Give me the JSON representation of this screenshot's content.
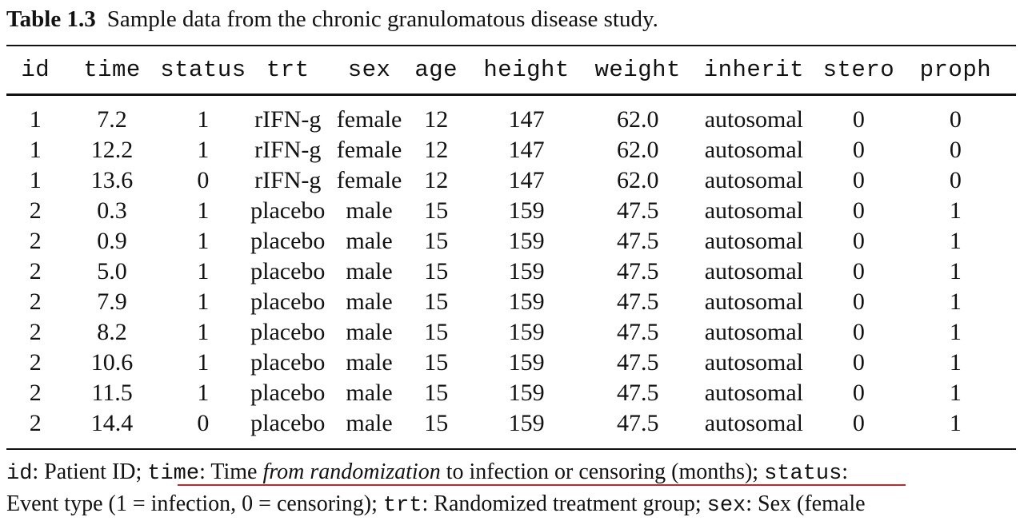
{
  "caption": {
    "label": "Table 1.3",
    "text": "Sample data from the chronic granulomatous disease study."
  },
  "table": {
    "headers": [
      "id",
      "time",
      "status",
      "trt",
      "sex",
      "age",
      "height",
      "weight",
      "inherit",
      "stero",
      "proph"
    ],
    "rows": [
      [
        "1",
        "7.2",
        "1",
        "rIFN-g",
        "female",
        "12",
        "147",
        "62.0",
        "autosomal",
        "0",
        "0"
      ],
      [
        "1",
        "12.2",
        "1",
        "rIFN-g",
        "female",
        "12",
        "147",
        "62.0",
        "autosomal",
        "0",
        "0"
      ],
      [
        "1",
        "13.6",
        "0",
        "rIFN-g",
        "female",
        "12",
        "147",
        "62.0",
        "autosomal",
        "0",
        "0"
      ],
      [
        "2",
        "0.3",
        "1",
        "placebo",
        "male",
        "15",
        "159",
        "47.5",
        "autosomal",
        "0",
        "1"
      ],
      [
        "2",
        "0.9",
        "1",
        "placebo",
        "male",
        "15",
        "159",
        "47.5",
        "autosomal",
        "0",
        "1"
      ],
      [
        "2",
        "5.0",
        "1",
        "placebo",
        "male",
        "15",
        "159",
        "47.5",
        "autosomal",
        "0",
        "1"
      ],
      [
        "2",
        "7.9",
        "1",
        "placebo",
        "male",
        "15",
        "159",
        "47.5",
        "autosomal",
        "0",
        "1"
      ],
      [
        "2",
        "8.2",
        "1",
        "placebo",
        "male",
        "15",
        "159",
        "47.5",
        "autosomal",
        "0",
        "1"
      ],
      [
        "2",
        "10.6",
        "1",
        "placebo",
        "male",
        "15",
        "159",
        "47.5",
        "autosomal",
        "0",
        "1"
      ],
      [
        "2",
        "11.5",
        "1",
        "placebo",
        "male",
        "15",
        "159",
        "47.5",
        "autosomal",
        "0",
        "1"
      ],
      [
        "2",
        "14.4",
        "0",
        "placebo",
        "male",
        "15",
        "159",
        "47.5",
        "autosomal",
        "0",
        "1"
      ]
    ]
  },
  "description": {
    "line1": {
      "id_term": "id",
      "id_text": ": Patient ID; ",
      "time_term": "time",
      "time_text_a": ": Time ",
      "time_text_em": "from randomization",
      "time_text_b": " to infection or censoring (months); ",
      "status_term": "status",
      "status_text": ":"
    },
    "line2": {
      "status_desc": "Event type (1 = infection, 0 = censoring); ",
      "trt_term": "trt",
      "trt_text": ": Randomized treatment group; ",
      "sex_term": "sex",
      "sex_text": ": Sex (female"
    }
  },
  "highlight_color": "#c0282d"
}
